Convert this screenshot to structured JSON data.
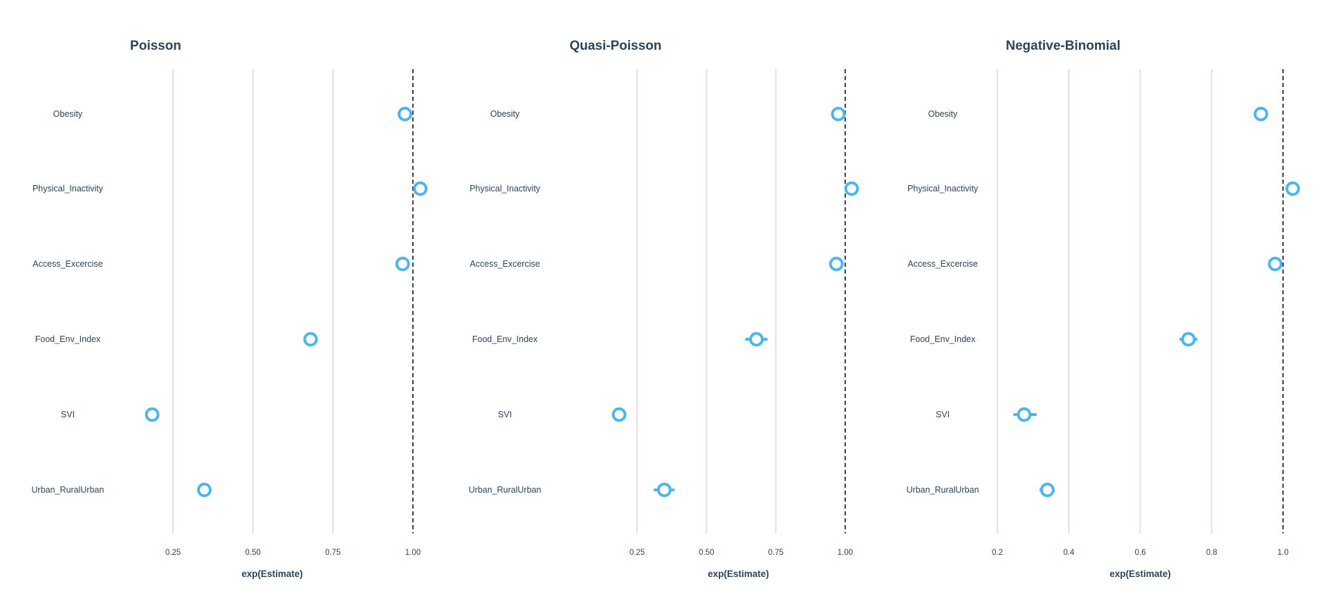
{
  "chart_data": [
    {
      "type": "scatter",
      "title": "Poisson",
      "xlabel": "exp(Estimate)",
      "ylabel": "",
      "xlim": [
        0.12,
        1.0
      ],
      "xticks": [
        0.25,
        0.5,
        0.75,
        1.0
      ],
      "xtick_labels": [
        "0.25",
        "0.50",
        "0.75",
        "1.00"
      ],
      "reference_line": 1.0,
      "grid": true,
      "categories": [
        "Obesity",
        "Physical_Inactivity",
        "Access_Excercise",
        "Food_Env_Index",
        "SVI",
        "Urban_RuralUrban"
      ],
      "values": [
        0.975,
        1.023,
        0.968,
        0.68,
        0.185,
        0.348
      ],
      "ci_low": [
        0.973,
        1.021,
        0.966,
        0.675,
        0.182,
        0.344
      ],
      "ci_high": [
        0.977,
        1.025,
        0.97,
        0.685,
        0.188,
        0.352
      ]
    },
    {
      "type": "scatter",
      "title": "Quasi-Poisson",
      "xlabel": "exp(Estimate)",
      "ylabel": "",
      "xlim": [
        0.13,
        1.0
      ],
      "xticks": [
        0.25,
        0.5,
        0.75,
        1.0
      ],
      "xtick_labels": [
        "0.25",
        "0.50",
        "0.75",
        "1.00"
      ],
      "reference_line": 1.0,
      "grid": true,
      "categories": [
        "Obesity",
        "Physical_Inactivity",
        "Access_Excercise",
        "Food_Env_Index",
        "SVI",
        "Urban_RuralUrban"
      ],
      "values": [
        0.975,
        1.023,
        0.968,
        0.68,
        0.185,
        0.348
      ],
      "ci_low": [
        0.968,
        1.016,
        0.96,
        0.64,
        0.165,
        0.31
      ],
      "ci_high": [
        0.982,
        1.03,
        0.976,
        0.72,
        0.21,
        0.385
      ]
    },
    {
      "type": "scatter",
      "title": "Negative-Binomial",
      "xlabel": "exp(Estimate)",
      "ylabel": "",
      "xlim": [
        0.2,
        1.0
      ],
      "xticks": [
        0.2,
        0.4,
        0.6,
        0.8,
        1.0
      ],
      "xtick_labels": [
        "0.2",
        "0.4",
        "0.6",
        "0.8",
        "1.0"
      ],
      "reference_line": 1.0,
      "grid": true,
      "categories": [
        "Obesity",
        "Physical_Inactivity",
        "Access_Excercise",
        "Food_Env_Index",
        "SVI",
        "Urban_RuralUrban"
      ],
      "values": [
        0.938,
        1.027,
        0.978,
        0.735,
        0.275,
        0.34
      ],
      "ci_low": [
        0.933,
        1.022,
        0.972,
        0.71,
        0.245,
        0.318
      ],
      "ci_high": [
        0.943,
        1.032,
        0.984,
        0.76,
        0.31,
        0.36
      ]
    }
  ],
  "colors": {
    "point": "#4db5ee",
    "title": "#2d4458",
    "text": "#2d4458",
    "grid": "#e3e3e3",
    "reference_line": "#111111"
  }
}
